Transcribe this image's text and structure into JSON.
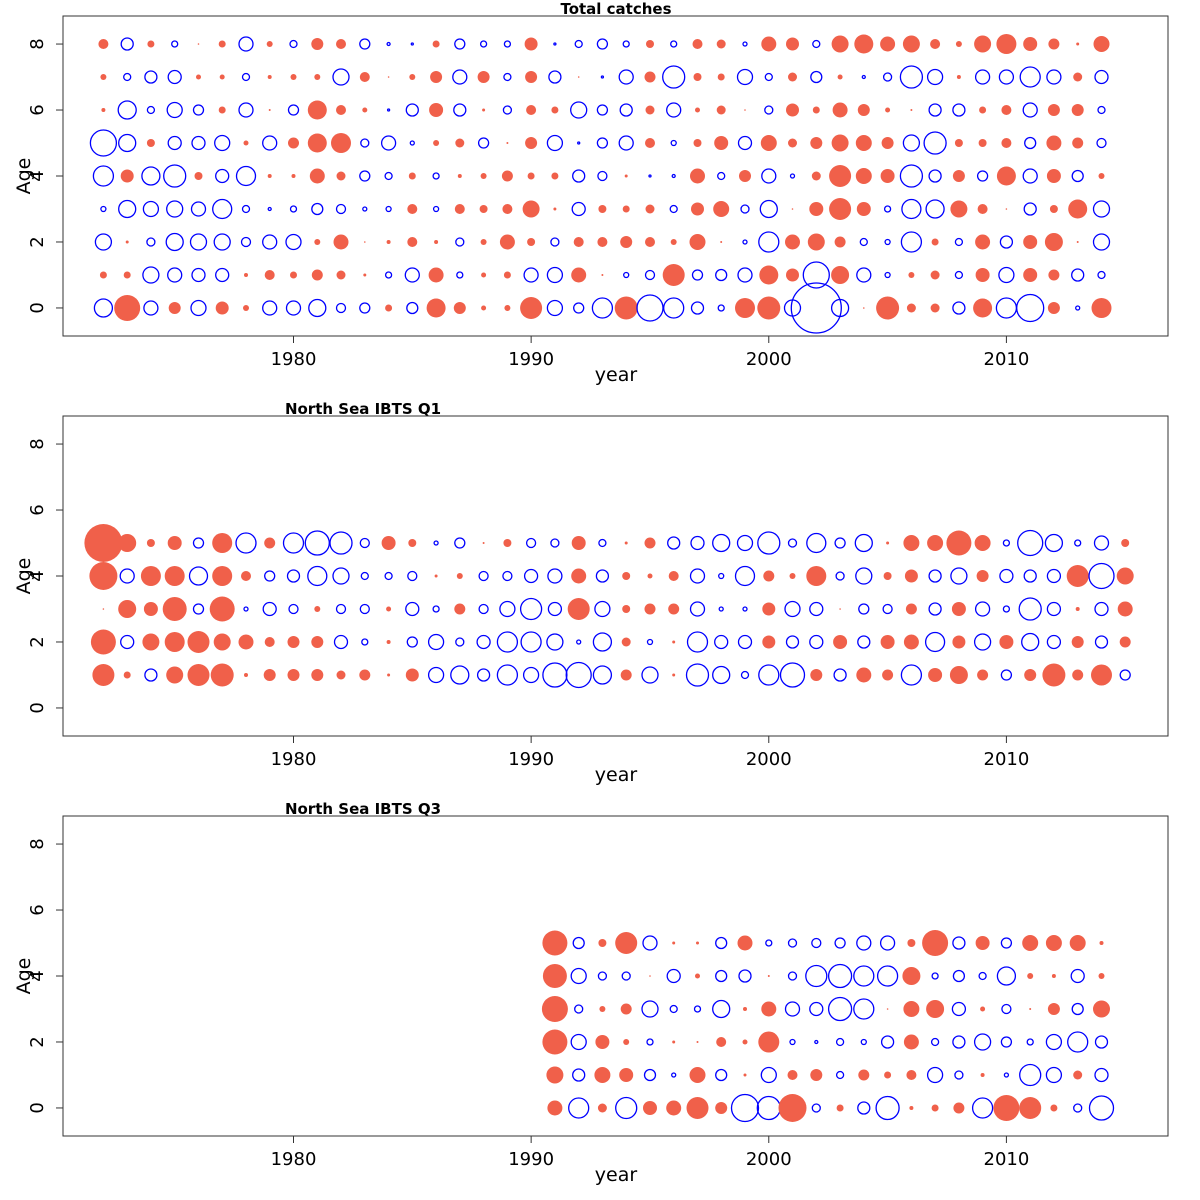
{
  "chart_data": [
    {
      "type": "scatter",
      "subtype": "bubble",
      "title": "Total catches",
      "xlabel": "year",
      "ylabel": "Age",
      "xticks": [
        1980,
        1990,
        2000,
        2010
      ],
      "yticks": [
        0,
        2,
        4,
        6,
        8
      ],
      "xlim": [
        1970.3,
        2016.8
      ],
      "ylim": [
        -0.85,
        8.85
      ],
      "legend": "none",
      "encoding": "bubble size = |residual| (relative scale); filled red = positive, open blue = negative",
      "colors": {
        "positive": "#f0604a",
        "negative": "#0000ff"
      },
      "years": [
        1972,
        1973,
        1974,
        1975,
        1976,
        1977,
        1978,
        1979,
        1980,
        1981,
        1982,
        1983,
        1984,
        1985,
        1986,
        1987,
        1988,
        1989,
        1990,
        1991,
        1992,
        1993,
        1994,
        1995,
        1996,
        1997,
        1998,
        1999,
        2000,
        2001,
        2002,
        2003,
        2004,
        2005,
        2006,
        2007,
        2008,
        2009,
        2010,
        2011,
        2012,
        2013,
        2014
      ],
      "series": [
        {
          "age": 0,
          "values": [
            -9,
            13,
            -7,
            6,
            -7.5,
            6.5,
            3,
            -7,
            -7,
            -8.5,
            -4.5,
            -5,
            3.5,
            -5.5,
            9.5,
            6,
            2.5,
            3,
            11,
            -7.5,
            -5,
            -10,
            11.5,
            -13,
            -10,
            -6,
            -3,
            10,
            11.5,
            -8,
            -25,
            -8.5,
            0.5,
            11.5,
            4.5,
            4.5,
            -6,
            9.5,
            -10,
            -13.5,
            6,
            -2,
            10
          ]
        },
        {
          "age": 1,
          "values": [
            3.5,
            3.5,
            -8,
            -7,
            -6.5,
            -6.5,
            2,
            5,
            3.5,
            5.5,
            4.5,
            1.5,
            -3,
            -7,
            7.5,
            -3,
            2.5,
            3.5,
            -7,
            -7.5,
            7.5,
            1,
            -2.5,
            -4.5,
            11,
            -5,
            -5.5,
            -7,
            9.5,
            6.5,
            -13,
            9,
            -7,
            -2.5,
            3,
            4.5,
            -3.5,
            7,
            -7.5,
            7,
            5.5,
            -6,
            -3.5
          ]
        },
        {
          "age": 2,
          "values": [
            -8,
            1.5,
            -4,
            -8.5,
            -8,
            -8,
            -4.5,
            -7,
            -7.5,
            3,
            7.5,
            0.5,
            2,
            5,
            2,
            -4,
            3,
            7.5,
            4,
            -4,
            5,
            5,
            6,
            5,
            3,
            8,
            1,
            -2,
            -10,
            7.5,
            8.5,
            5.5,
            -3.5,
            -2.5,
            -10,
            3.5,
            -3.5,
            7.5,
            -6,
            7,
            9,
            1,
            -8
          ]
        },
        {
          "age": 3,
          "values": [
            -2.5,
            -8.5,
            -7.5,
            -8,
            -7,
            -9.5,
            -3.5,
            -1.5,
            -3,
            -5.5,
            -4.5,
            -2,
            -2.5,
            5,
            -2.5,
            5,
            4,
            5,
            8.5,
            1.5,
            -6.5,
            4,
            3.5,
            4.5,
            -3.5,
            6.5,
            8,
            -4,
            -8.5,
            0.5,
            7,
            11,
            7,
            -3,
            -9.5,
            -9,
            8.5,
            5,
            0.5,
            -6,
            4,
            9.5,
            -8
          ]
        },
        {
          "age": 4,
          "values": [
            -10,
            6.5,
            -9,
            -11,
            4,
            -6.5,
            -9.5,
            2,
            2,
            7.5,
            4.5,
            -5,
            -3.5,
            3.5,
            -3,
            2,
            3,
            5.5,
            3.5,
            3.5,
            -6,
            -4.5,
            1.5,
            -1,
            -1.5,
            7.5,
            -3.5,
            6,
            -7,
            -2,
            4.5,
            11,
            8,
            7,
            -11,
            -6,
            6,
            -5,
            9.5,
            -7,
            7,
            -5.5,
            3
          ]
        },
        {
          "age": 5,
          "values": [
            -13,
            -8.5,
            4,
            -6.5,
            -6.5,
            -7.5,
            2.5,
            -7,
            5.5,
            9.5,
            10,
            -4,
            -7,
            -2,
            3,
            4.5,
            -5,
            1,
            6,
            -7.5,
            -1,
            -5,
            -7,
            5,
            -2.5,
            4,
            7,
            -6.5,
            8,
            4.5,
            6,
            8.5,
            8,
            6,
            -8,
            -11,
            4,
            4,
            5,
            -5.5,
            7.5,
            5.5,
            -4.5
          ]
        },
        {
          "age": 6,
          "values": [
            2,
            -9,
            -3.5,
            -7.5,
            -5,
            3.5,
            -7,
            1,
            -5,
            9.5,
            5,
            2.5,
            -1,
            -6,
            7,
            -6,
            1.5,
            -4,
            5,
            3.5,
            -8,
            -5,
            -6,
            4.5,
            -7,
            2.5,
            4.5,
            0.5,
            -4,
            6.5,
            3.5,
            7.5,
            6,
            2.5,
            1,
            -6,
            -6,
            3.5,
            5,
            -7,
            6,
            6,
            -3.5
          ]
        },
        {
          "age": 7,
          "values": [
            3,
            -3.5,
            -6,
            -6.5,
            2.5,
            2.5,
            -3.5,
            2,
            3,
            3,
            -8,
            5,
            0.5,
            3,
            6,
            -7,
            6,
            -3.5,
            6,
            -6,
            0.5,
            -1,
            -7,
            5.5,
            -11,
            4,
            3.5,
            -7.5,
            -3.5,
            4.5,
            -5.5,
            2.5,
            -1.5,
            -4,
            -11,
            -7.5,
            2,
            -7,
            -7,
            -10,
            -7,
            4.5,
            -6.5
          ]
        },
        {
          "age": 8,
          "values": [
            5,
            -6,
            3.5,
            -3,
            0.5,
            3.5,
            -7,
            3,
            -3.5,
            6,
            5,
            -5,
            -1.5,
            -1,
            3.5,
            -5,
            -3,
            -3,
            6.5,
            -1,
            -3.5,
            -5,
            -3,
            4,
            -3,
            5,
            4.5,
            -2,
            7.5,
            6.5,
            -3.5,
            8.5,
            9.5,
            7.5,
            8.5,
            5,
            3,
            8.5,
            10,
            7,
            5.5,
            1.5,
            8
          ]
        }
      ]
    },
    {
      "type": "scatter",
      "subtype": "bubble",
      "title": "North Sea IBTS Q1",
      "xlabel": "year",
      "ylabel": "Age",
      "xticks": [
        1980,
        1990,
        2000,
        2010
      ],
      "yticks": [
        0,
        2,
        4,
        6,
        8
      ],
      "xlim": [
        1970.3,
        2016.8
      ],
      "ylim": [
        -0.85,
        8.85
      ],
      "legend": "none",
      "encoding": "bubble size = |residual| (relative scale); filled red = positive, open blue = negative",
      "colors": {
        "positive": "#f0604a",
        "negative": "#0000ff"
      },
      "years": [
        1972,
        1973,
        1974,
        1975,
        1976,
        1977,
        1978,
        1979,
        1980,
        1981,
        1982,
        1983,
        1984,
        1985,
        1986,
        1987,
        1988,
        1989,
        1990,
        1991,
        1992,
        1993,
        1994,
        1995,
        1996,
        1997,
        1998,
        1999,
        2000,
        2001,
        2002,
        2003,
        2004,
        2005,
        2006,
        2007,
        2008,
        2009,
        2010,
        2011,
        2012,
        2013,
        2014,
        2015
      ],
      "series": [
        {
          "age": 1,
          "values": [
            11,
            3.5,
            -6,
            8.5,
            11,
            11.5,
            2,
            6,
            6,
            6,
            4.5,
            5.5,
            1.5,
            6.5,
            -7.5,
            -9,
            -6,
            -10,
            -7.5,
            -12,
            -12.5,
            -9,
            5.5,
            -8,
            1.5,
            -11,
            -8.5,
            -3.5,
            -10,
            -12,
            6,
            -6,
            7.5,
            5.5,
            -10,
            7,
            9,
            5.5,
            -5,
            6,
            11.5,
            5.5,
            10.5,
            -5
          ]
        },
        {
          "age": 2,
          "values": [
            12.5,
            -6.5,
            8.5,
            10,
            11,
            8.5,
            7.5,
            5,
            6,
            6,
            -6.5,
            -3,
            2,
            -5,
            -7.5,
            -4,
            -6.5,
            -10,
            -10,
            -8,
            -2,
            -9,
            4.5,
            -2.5,
            1.5,
            -10,
            -6.5,
            -6.5,
            6.5,
            -6,
            -6.5,
            7,
            -6,
            7,
            7.5,
            -9.5,
            6.5,
            -8,
            7,
            -8.5,
            -6.5,
            6,
            -6,
            5.5
          ]
        },
        {
          "age": 3,
          "values": [
            0.5,
            9,
            7,
            12,
            -5,
            12.5,
            -2,
            -6.5,
            -4.5,
            3,
            -4.5,
            -4.5,
            2.5,
            -6.5,
            -3,
            5.5,
            -4.5,
            -7.5,
            -10.5,
            -6.5,
            11,
            -7.5,
            4,
            5.5,
            5.5,
            -7,
            -2,
            -2,
            6.5,
            -7.5,
            -6.5,
            0.5,
            -5,
            -4.5,
            5.5,
            -6,
            7,
            -7,
            -3,
            -11,
            -6.5,
            2,
            -6.5,
            7.5
          ]
        },
        {
          "age": 4,
          "values": [
            14,
            -7,
            10,
            10,
            -9,
            10,
            5,
            -5,
            -6,
            -9.5,
            -8,
            -3.5,
            -3.5,
            -4.5,
            1.5,
            3,
            -4.5,
            -4.5,
            -6.5,
            -7,
            7.5,
            -6,
            4,
            2.5,
            5,
            -7,
            -2.5,
            -9.5,
            5.5,
            3,
            10,
            -4,
            -8,
            4,
            6.5,
            -6,
            -8,
            6,
            -6.5,
            -6,
            -6.5,
            11,
            -12.5,
            8.5
          ]
        },
        {
          "age": 5,
          "values": [
            19,
            9,
            4,
            7,
            -5,
            10,
            -10,
            5.5,
            -10,
            -12,
            -11,
            -4.5,
            7,
            4,
            -2,
            -5,
            1,
            4,
            -4.5,
            -4,
            7,
            -3.5,
            1.5,
            5.5,
            -6,
            -6.5,
            -8.5,
            -7.5,
            -11,
            -4,
            -9.5,
            -5,
            -8.5,
            1.5,
            8,
            8,
            12.5,
            8,
            -3,
            -12.5,
            -8.5,
            -3,
            -7,
            4
          ]
        }
      ]
    },
    {
      "type": "scatter",
      "subtype": "bubble",
      "title": "North Sea IBTS Q3",
      "xlabel": "year",
      "ylabel": "Age",
      "xticks": [
        1980,
        1990,
        2000,
        2010
      ],
      "yticks": [
        0,
        2,
        4,
        6,
        8
      ],
      "xlim": [
        1970.3,
        2016.8
      ],
      "ylim": [
        -0.85,
        8.85
      ],
      "legend": "none",
      "encoding": "bubble size = |residual| (relative scale); filled red = positive, open blue = negative",
      "colors": {
        "positive": "#f0604a",
        "negative": "#0000ff"
      },
      "years": [
        1991,
        1992,
        1993,
        1994,
        1995,
        1996,
        1997,
        1998,
        1999,
        2000,
        2001,
        2002,
        2003,
        2004,
        2005,
        2006,
        2007,
        2008,
        2009,
        2010,
        2011,
        2012,
        2013,
        2014
      ],
      "series": [
        {
          "age": 0,
          "values": [
            7.5,
            -10,
            4.5,
            -10.5,
            7,
            7.5,
            11,
            6,
            -13.5,
            -11.5,
            14,
            -4,
            3.5,
            -6,
            -11.5,
            2,
            3.5,
            5.5,
            -10,
            13,
            11,
            3.5,
            -4,
            -12
          ]
        },
        {
          "age": 1,
          "values": [
            8.5,
            -6,
            8,
            7,
            -5.5,
            -2,
            8,
            -5.5,
            1.5,
            -7.5,
            5,
            6,
            -3.5,
            5.5,
            3.5,
            5,
            -7.5,
            -4,
            2,
            -2,
            -10.5,
            -7.5,
            4.5,
            -6.5
          ]
        },
        {
          "age": 2,
          "values": [
            12.5,
            -7.5,
            7,
            3,
            -3,
            1.5,
            1,
            5,
            2.5,
            10.5,
            -2.5,
            -1.5,
            -3.5,
            -2.5,
            -6,
            7.5,
            -3.5,
            -6,
            -8,
            -5,
            -3,
            -7.5,
            -10,
            -6
          ]
        },
        {
          "age": 3,
          "values": [
            13,
            -4,
            3,
            5.5,
            -8,
            -3.5,
            -3,
            -8.5,
            2,
            7.5,
            -7,
            -6.5,
            -11.5,
            -10,
            0.5,
            8,
            9,
            -6.5,
            2.5,
            -4.5,
            1,
            6,
            -5.5,
            8.5
          ]
        },
        {
          "age": 4,
          "values": [
            12,
            -7.5,
            -4,
            -4,
            0.5,
            -6.5,
            2.5,
            -5.5,
            -6,
            1,
            -4,
            -10.5,
            -11.5,
            -10,
            -10,
            9,
            -3,
            -5.5,
            -3.5,
            -9,
            3,
            2,
            -6.5,
            3
          ]
        },
        {
          "age": 5,
          "values": [
            12.5,
            -5.5,
            4,
            11,
            -7,
            1.5,
            1.5,
            -5.5,
            7.5,
            -3,
            -4,
            -4.5,
            -5,
            -7,
            -7,
            4,
            13,
            -6,
            7,
            -5,
            8,
            8,
            8,
            2
          ]
        }
      ]
    }
  ]
}
